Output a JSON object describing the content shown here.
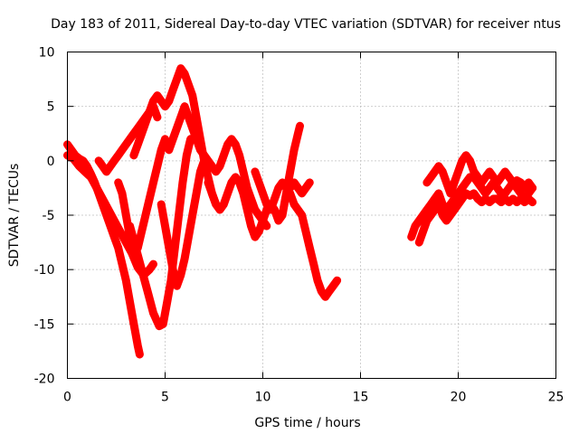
{
  "chart_data": {
    "type": "scatter",
    "title": "Day 183 of 2011, Sidereal Day-to-day VTEC variation (SDTVAR) for receiver ntus",
    "xlabel": "GPS time / hours",
    "ylabel": "SDTVAR / TECUs",
    "xlim": [
      0,
      25
    ],
    "ylim": [
      -20,
      10
    ],
    "xticks": [
      0,
      5,
      10,
      15,
      20,
      25
    ],
    "yticks": [
      -20,
      -15,
      -10,
      -5,
      0,
      5,
      10
    ],
    "grid": true,
    "marker": "+",
    "color": "#ff0000",
    "series": [
      {
        "values": [
          [
            0.0,
            1.5
          ],
          [
            0.2,
            1.0
          ],
          [
            0.4,
            0.5
          ],
          [
            0.6,
            0.2
          ],
          [
            0.8,
            0.0
          ],
          [
            1.0,
            -0.5
          ],
          [
            1.2,
            -1.2
          ],
          [
            1.4,
            -2.0
          ],
          [
            1.6,
            -3.0
          ],
          [
            1.8,
            -4.0
          ],
          [
            2.0,
            -5.0
          ],
          [
            2.2,
            -6.0
          ],
          [
            2.4,
            -7.0
          ],
          [
            2.6,
            -8.0
          ],
          [
            2.8,
            -9.5
          ],
          [
            3.0,
            -11.0
          ],
          [
            3.2,
            -13.0
          ],
          [
            3.4,
            -15.0
          ],
          [
            3.6,
            -17.0
          ],
          [
            3.7,
            -17.8
          ]
        ]
      },
      {
        "values": [
          [
            0.0,
            0.5
          ],
          [
            0.3,
            0.2
          ],
          [
            0.6,
            -0.5
          ],
          [
            0.9,
            -1.0
          ],
          [
            1.2,
            -1.5
          ],
          [
            1.5,
            -2.5
          ],
          [
            1.8,
            -3.5
          ],
          [
            2.1,
            -4.5
          ],
          [
            2.4,
            -5.5
          ],
          [
            2.7,
            -6.5
          ],
          [
            3.0,
            -7.5
          ],
          [
            3.3,
            -8.5
          ],
          [
            3.6,
            -9.8
          ],
          [
            3.9,
            -10.5
          ],
          [
            4.2,
            -10.0
          ],
          [
            4.4,
            -9.5
          ]
        ]
      },
      {
        "values": [
          [
            3.2,
            -6.0
          ],
          [
            3.5,
            -8.0
          ],
          [
            3.8,
            -10.0
          ],
          [
            4.1,
            -12.0
          ],
          [
            4.4,
            -14.0
          ],
          [
            4.7,
            -15.2
          ],
          [
            4.9,
            -15.0
          ],
          [
            5.1,
            -13.0
          ],
          [
            5.3,
            -11.0
          ],
          [
            5.5,
            -8.0
          ],
          [
            5.7,
            -5.0
          ],
          [
            5.9,
            -2.0
          ],
          [
            6.1,
            0.5
          ],
          [
            6.3,
            2.0
          ]
        ]
      },
      {
        "values": [
          [
            3.4,
            0.5
          ],
          [
            3.6,
            1.5
          ],
          [
            3.8,
            2.5
          ],
          [
            4.0,
            3.5
          ],
          [
            4.2,
            4.5
          ],
          [
            4.4,
            5.5
          ],
          [
            4.6,
            6.0
          ],
          [
            4.8,
            5.5
          ],
          [
            5.0,
            5.0
          ],
          [
            5.2,
            5.5
          ],
          [
            5.4,
            6.5
          ],
          [
            5.6,
            7.5
          ],
          [
            5.8,
            8.5
          ],
          [
            6.0,
            8.0
          ],
          [
            6.2,
            7.0
          ],
          [
            6.4,
            6.0
          ],
          [
            6.6,
            4.0
          ],
          [
            6.8,
            2.0
          ],
          [
            7.0,
            0.0
          ],
          [
            7.2,
            -1.5
          ],
          [
            7.4,
            -3.0
          ],
          [
            7.6,
            -4.0
          ]
        ]
      },
      {
        "values": [
          [
            1.6,
            0.0
          ],
          [
            1.8,
            -0.5
          ],
          [
            2.0,
            -1.0
          ],
          [
            2.2,
            -0.5
          ],
          [
            2.4,
            0.0
          ],
          [
            2.6,
            0.5
          ],
          [
            2.8,
            1.0
          ],
          [
            3.0,
            1.5
          ],
          [
            3.2,
            2.0
          ],
          [
            3.4,
            2.5
          ],
          [
            3.6,
            3.0
          ],
          [
            3.8,
            3.5
          ],
          [
            4.0,
            4.0
          ],
          [
            4.2,
            4.5
          ],
          [
            4.4,
            5.0
          ],
          [
            4.6,
            4.0
          ]
        ]
      },
      {
        "values": [
          [
            2.6,
            -2.0
          ],
          [
            2.8,
            -3.0
          ],
          [
            3.0,
            -5.0
          ],
          [
            3.2,
            -7.0
          ],
          [
            3.4,
            -8.5
          ],
          [
            3.6,
            -8.0
          ],
          [
            3.8,
            -6.5
          ],
          [
            4.0,
            -5.0
          ],
          [
            4.2,
            -3.5
          ],
          [
            4.4,
            -2.0
          ],
          [
            4.6,
            -0.5
          ],
          [
            4.8,
            1.0
          ],
          [
            5.0,
            2.0
          ]
        ]
      },
      {
        "values": [
          [
            4.8,
            -4.0
          ],
          [
            5.0,
            -6.0
          ],
          [
            5.2,
            -8.0
          ],
          [
            5.4,
            -10.0
          ],
          [
            5.6,
            -11.5
          ],
          [
            5.8,
            -10.5
          ],
          [
            6.0,
            -9.0
          ],
          [
            6.2,
            -7.0
          ],
          [
            6.4,
            -5.0
          ],
          [
            6.6,
            -3.0
          ],
          [
            6.8,
            -1.0
          ],
          [
            7.0,
            0.0
          ]
        ]
      },
      {
        "values": [
          [
            5.2,
            1.0
          ],
          [
            5.4,
            2.0
          ],
          [
            5.6,
            3.0
          ],
          [
            5.8,
            4.0
          ],
          [
            6.0,
            5.0
          ],
          [
            6.2,
            4.0
          ],
          [
            6.4,
            3.0
          ],
          [
            6.6,
            2.0
          ],
          [
            6.8,
            1.0
          ],
          [
            7.0,
            0.5
          ],
          [
            7.2,
            0.0
          ],
          [
            7.4,
            -0.5
          ],
          [
            7.6,
            -1.0
          ],
          [
            7.8,
            -0.5
          ],
          [
            8.0,
            0.5
          ],
          [
            8.2,
            1.5
          ],
          [
            8.4,
            2.0
          ],
          [
            8.6,
            1.5
          ],
          [
            8.8,
            0.5
          ],
          [
            9.0,
            -1.0
          ],
          [
            9.2,
            -2.5
          ],
          [
            9.4,
            -3.5
          ],
          [
            9.6,
            -4.5
          ],
          [
            9.8,
            -5.0
          ],
          [
            10.0,
            -5.5
          ],
          [
            10.2,
            -6.0
          ]
        ]
      },
      {
        "values": [
          [
            7.2,
            -2.0
          ],
          [
            7.4,
            -3.0
          ],
          [
            7.6,
            -4.0
          ],
          [
            7.8,
            -4.5
          ],
          [
            8.0,
            -4.0
          ],
          [
            8.2,
            -3.0
          ],
          [
            8.4,
            -2.0
          ],
          [
            8.6,
            -1.5
          ],
          [
            8.8,
            -2.0
          ],
          [
            9.0,
            -3.0
          ],
          [
            9.2,
            -4.5
          ],
          [
            9.4,
            -6.0
          ],
          [
            9.6,
            -7.0
          ],
          [
            9.8,
            -6.5
          ],
          [
            10.0,
            -5.5
          ],
          [
            10.2,
            -4.5
          ],
          [
            10.4,
            -4.0
          ],
          [
            10.6,
            -4.5
          ],
          [
            10.8,
            -5.5
          ],
          [
            11.0,
            -5.0
          ],
          [
            11.2,
            -3.0
          ],
          [
            11.4,
            -1.0
          ],
          [
            11.6,
            1.0
          ],
          [
            11.8,
            2.5
          ],
          [
            11.9,
            3.2
          ]
        ]
      },
      {
        "values": [
          [
            9.6,
            -1.0
          ],
          [
            9.8,
            -2.0
          ],
          [
            10.0,
            -3.0
          ],
          [
            10.2,
            -4.0
          ],
          [
            10.4,
            -4.5
          ],
          [
            10.6,
            -3.5
          ],
          [
            10.8,
            -2.5
          ],
          [
            11.0,
            -2.0
          ],
          [
            11.2,
            -2.5
          ],
          [
            11.4,
            -3.0
          ],
          [
            11.6,
            -4.0
          ],
          [
            11.8,
            -4.5
          ],
          [
            12.0,
            -5.0
          ],
          [
            12.2,
            -6.5
          ],
          [
            12.4,
            -8.0
          ],
          [
            12.6,
            -9.5
          ],
          [
            12.8,
            -11.0
          ],
          [
            13.0,
            -12.0
          ],
          [
            13.2,
            -12.5
          ],
          [
            13.4,
            -12.0
          ],
          [
            13.6,
            -11.5
          ],
          [
            13.8,
            -11.0
          ]
        ]
      },
      {
        "values": [
          [
            11.4,
            -2.5
          ],
          [
            11.6,
            -2.0
          ],
          [
            11.8,
            -2.5
          ],
          [
            12.0,
            -3.0
          ],
          [
            12.2,
            -2.5
          ],
          [
            12.4,
            -2.0
          ]
        ]
      },
      {
        "values": [
          [
            17.6,
            -7.0
          ],
          [
            17.8,
            -6.0
          ],
          [
            18.0,
            -5.5
          ],
          [
            18.2,
            -5.0
          ],
          [
            18.4,
            -4.5
          ],
          [
            18.6,
            -4.0
          ],
          [
            18.8,
            -3.5
          ],
          [
            19.0,
            -3.0
          ],
          [
            19.2,
            -4.0
          ],
          [
            19.4,
            -4.5
          ],
          [
            19.6,
            -4.0
          ],
          [
            19.8,
            -3.5
          ],
          [
            20.0,
            -3.0
          ],
          [
            20.2,
            -2.5
          ],
          [
            20.4,
            -2.0
          ],
          [
            20.6,
            -1.5
          ],
          [
            20.8,
            -1.5
          ],
          [
            21.0,
            -2.0
          ],
          [
            21.2,
            -2.5
          ],
          [
            21.4,
            -3.0
          ],
          [
            21.6,
            -2.5
          ],
          [
            21.8,
            -2.0
          ],
          [
            22.0,
            -2.5
          ],
          [
            22.2,
            -3.0
          ],
          [
            22.4,
            -3.0
          ],
          [
            22.6,
            -2.5
          ],
          [
            22.8,
            -2.0
          ],
          [
            23.0,
            -2.5
          ],
          [
            23.2,
            -3.0
          ],
          [
            23.4,
            -3.5
          ],
          [
            23.6,
            -3.0
          ],
          [
            23.8,
            -2.5
          ]
        ]
      },
      {
        "values": [
          [
            18.4,
            -2.0
          ],
          [
            18.6,
            -1.5
          ],
          [
            18.8,
            -1.0
          ],
          [
            19.0,
            -0.5
          ],
          [
            19.2,
            -1.0
          ],
          [
            19.4,
            -2.0
          ],
          [
            19.6,
            -3.0
          ],
          [
            19.8,
            -2.0
          ],
          [
            20.0,
            -1.0
          ],
          [
            20.2,
            0.0
          ],
          [
            20.4,
            0.5
          ],
          [
            20.6,
            0.0
          ],
          [
            20.8,
            -1.0
          ],
          [
            21.0,
            -1.5
          ],
          [
            21.2,
            -2.0
          ],
          [
            21.4,
            -1.5
          ],
          [
            21.6,
            -1.0
          ],
          [
            21.8,
            -1.5
          ],
          [
            22.0,
            -2.0
          ],
          [
            22.2,
            -1.5
          ],
          [
            22.4,
            -1.0
          ],
          [
            22.6,
            -1.5
          ],
          [
            22.8,
            -2.0
          ],
          [
            23.0,
            -1.8
          ],
          [
            23.2,
            -2.0
          ],
          [
            23.4,
            -2.5
          ],
          [
            23.6,
            -2.0
          ],
          [
            23.8,
            -2.5
          ]
        ]
      },
      {
        "values": [
          [
            18.0,
            -7.5
          ],
          [
            18.2,
            -6.5
          ],
          [
            18.4,
            -5.5
          ],
          [
            18.6,
            -5.0
          ],
          [
            18.8,
            -4.5
          ],
          [
            19.0,
            -4.0
          ],
          [
            19.2,
            -5.0
          ],
          [
            19.4,
            -5.5
          ],
          [
            19.6,
            -5.0
          ],
          [
            19.8,
            -4.5
          ],
          [
            20.0,
            -4.0
          ],
          [
            20.2,
            -3.5
          ],
          [
            20.4,
            -3.0
          ],
          [
            20.6,
            -3.2
          ],
          [
            20.8,
            -3.0
          ],
          [
            21.0,
            -3.5
          ],
          [
            21.2,
            -3.8
          ],
          [
            21.4,
            -3.5
          ],
          [
            21.6,
            -3.8
          ],
          [
            21.8,
            -3.5
          ],
          [
            22.0,
            -3.5
          ],
          [
            22.2,
            -3.8
          ],
          [
            22.4,
            -3.5
          ],
          [
            22.6,
            -3.8
          ],
          [
            22.8,
            -3.5
          ],
          [
            23.0,
            -3.8
          ],
          [
            23.2,
            -3.5
          ],
          [
            23.4,
            -3.8
          ],
          [
            23.6,
            -3.5
          ],
          [
            23.8,
            -3.8
          ]
        ]
      }
    ]
  }
}
